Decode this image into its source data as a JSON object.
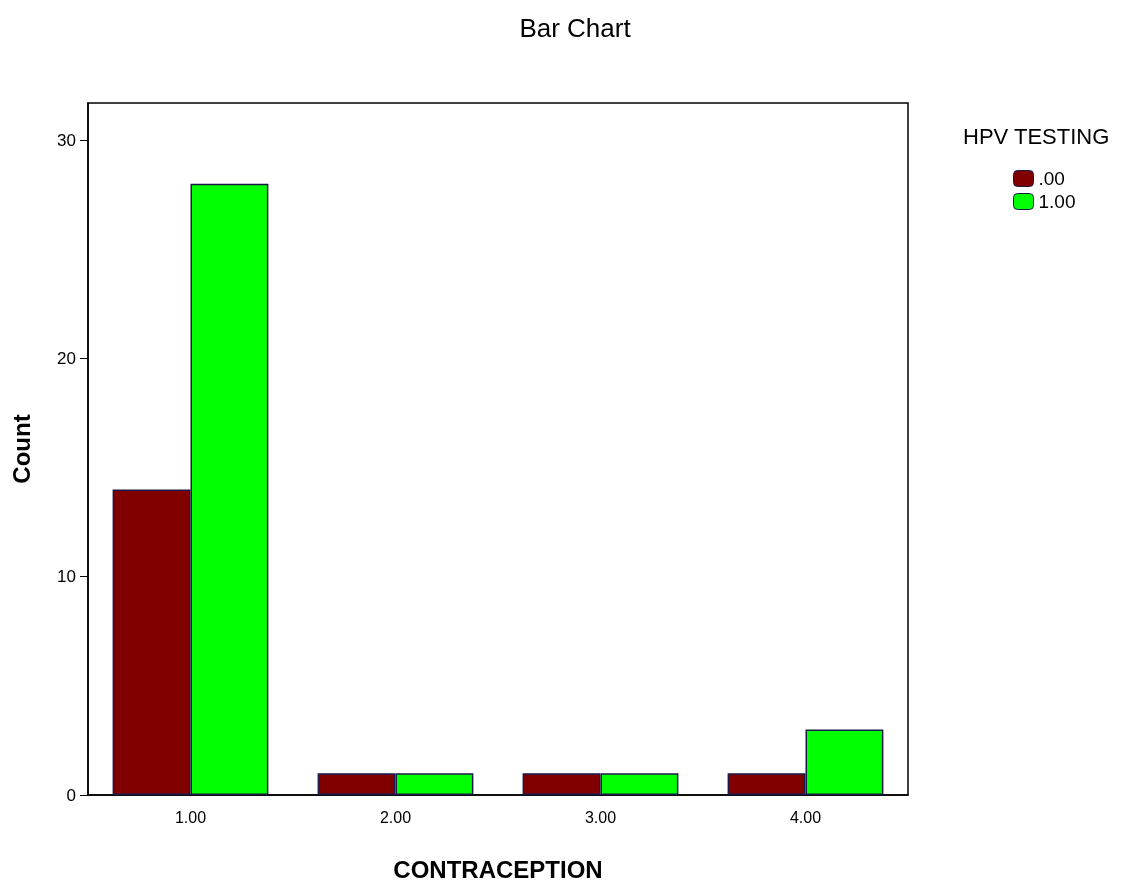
{
  "chart_data": {
    "type": "bar",
    "title": "Bar Chart",
    "xlabel": "CONTRACEPTION",
    "ylabel": "Count",
    "legend_title": "HPV TESTING",
    "categories": [
      "1.00",
      "2.00",
      "3.00",
      "4.00"
    ],
    "series": [
      {
        "name": ".00",
        "color": "#800000",
        "values": [
          14,
          1,
          1,
          1
        ]
      },
      {
        "name": "1.00",
        "color": "#00ff00",
        "values": [
          28,
          1,
          1,
          3
        ]
      }
    ],
    "ylim": [
      0,
      31.7
    ],
    "yticks": [
      0,
      10,
      20,
      30
    ],
    "grid": false,
    "legend": "top right"
  }
}
